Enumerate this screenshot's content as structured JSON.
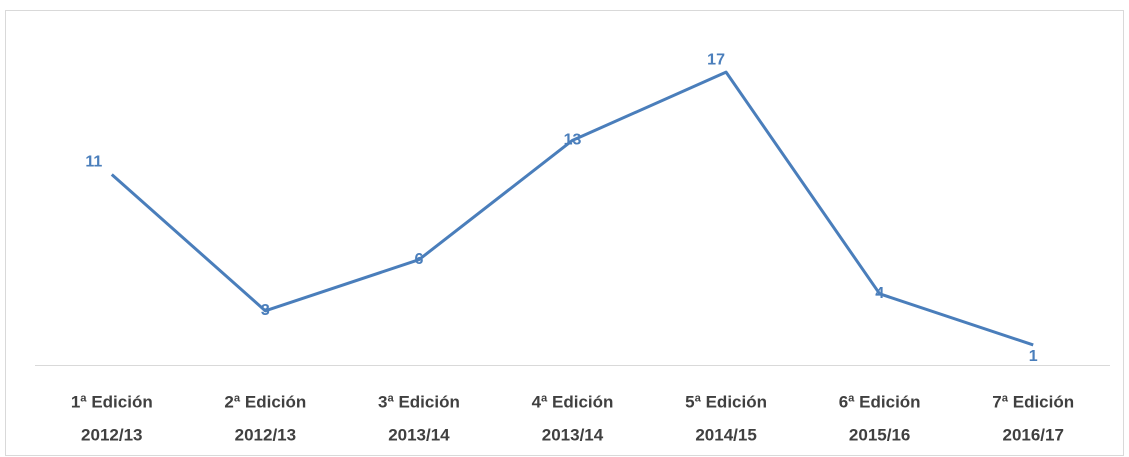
{
  "chart_data": {
    "type": "line",
    "categories": [
      [
        "1ª Edición",
        "2012/13"
      ],
      [
        "2ª Edición",
        "2012/13"
      ],
      [
        "3ª Edición",
        "2013/14"
      ],
      [
        "4ª Edición",
        "2013/14"
      ],
      [
        "5ª Edición",
        "2014/15"
      ],
      [
        "6ª Edición",
        "2015/16"
      ],
      [
        "7ª Edición",
        "2016/17"
      ]
    ],
    "series": [
      {
        "color": "#4a7ebb",
        "values": [
          11,
          3,
          6,
          13,
          17,
          4,
          1
        ]
      }
    ],
    "ylim": [
      0,
      20
    ]
  }
}
